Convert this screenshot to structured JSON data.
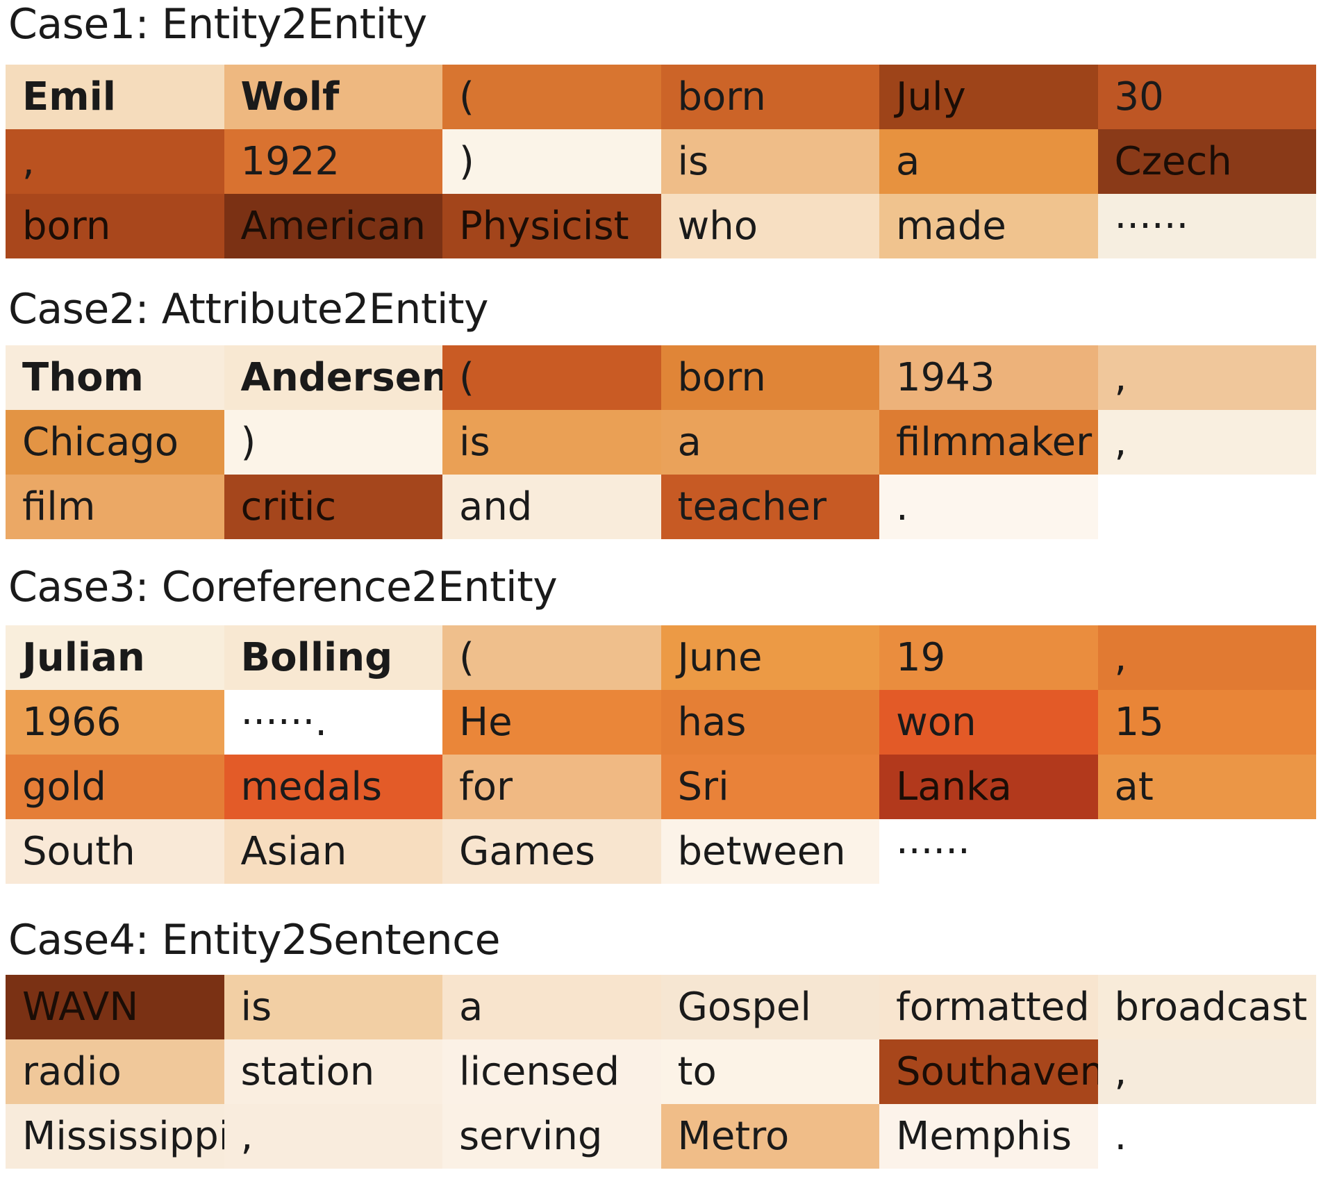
{
  "cases": [
    {
      "title": "Case1: Entity2Entity",
      "rows": [
        [
          {
            "text": "Emil",
            "color": "#f5dcbc",
            "bold": true
          },
          {
            "text": "Wolf",
            "color": "#eeb880",
            "bold": true
          },
          {
            "text": "(",
            "color": "#d87530"
          },
          {
            "text": "born",
            "color": "#cc6428"
          },
          {
            "text": "July",
            "color": "#9e4419"
          },
          {
            "text": "30",
            "color": "#be5624"
          }
        ],
        [
          {
            "text": ",",
            "color": "#ba5220"
          },
          {
            "text": "1922",
            "color": "#d97230"
          },
          {
            "text": ")",
            "color": "#fbf4e8"
          },
          {
            "text": "is",
            "color": "#efbd88"
          },
          {
            "text": "a",
            "color": "#e7923f"
          },
          {
            "text": "Czech",
            "color": "#8a3a18"
          }
        ],
        [
          {
            "text": "born",
            "color": "#a9471c"
          },
          {
            "text": "American",
            "color": "#7b3114"
          },
          {
            "text": "Physicist",
            "color": "#a3451b"
          },
          {
            "text": "who",
            "color": "#f7dfc2"
          },
          {
            "text": "made",
            "color": "#f0c38e"
          },
          {
            "text": "······",
            "color": "#f6eee0"
          }
        ]
      ]
    },
    {
      "title": "Case2: Attribute2Entity",
      "rows": [
        [
          {
            "text": "Thom",
            "color": "#f9ecdb",
            "bold": true
          },
          {
            "text": "Andersen",
            "color": "#f8e8d2",
            "bold": true
          },
          {
            "text": " (",
            "color": "#c95b24"
          },
          {
            "text": "born",
            "color": "#e08537"
          },
          {
            "text": "1943",
            "color": "#edb27a"
          },
          {
            "text": ",",
            "color": "#f0c79b"
          }
        ],
        [
          {
            "text": "Chicago",
            "color": "#e39444"
          },
          {
            "text": ")",
            "color": "#fcf4e8"
          },
          {
            "text": "is",
            "color": "#eaa055"
          },
          {
            "text": "a",
            "color": "#eaa25a"
          },
          {
            "text": "filmmaker",
            "color": "#dd7c32"
          },
          {
            "text": ",",
            "color": "#f9efe0"
          }
        ],
        [
          {
            "text": "film",
            "color": "#eba865"
          },
          {
            "text": "critic",
            "color": "#a5461c"
          },
          {
            "text": "and",
            "color": "#f9ecdb"
          },
          {
            "text": "teacher",
            "color": "#c75a24"
          },
          {
            "text": ".",
            "color": "#fdf6ee"
          }
        ]
      ]
    },
    {
      "title": "Case3: Coreference2Entity",
      "rows": [
        [
          {
            "text": "Julian",
            "color": "#f9eedc",
            "bold": true
          },
          {
            "text": "Bolling",
            "color": "#f8e8d2",
            "bold": true
          },
          {
            "text": "(",
            "color": "#efbf8c"
          },
          {
            "text": "June",
            "color": "#ec9a45"
          },
          {
            "text": "19",
            "color": "#ea8d3e"
          },
          {
            "text": ",",
            "color": "#e17a32"
          }
        ],
        [
          {
            "text": "1966",
            "color": "#eda052"
          },
          {
            "text": "······.",
            "color": "#ffffff"
          },
          {
            "text": "He",
            "color": "#ea8639"
          },
          {
            "text": "has",
            "color": "#e57f35"
          },
          {
            "text": "won",
            "color": "#e35a27"
          },
          {
            "text": "15",
            "color": "#e98537"
          }
        ],
        [
          {
            "text": "gold",
            "color": "#e57e37"
          },
          {
            "text": "medals",
            "color": "#e35b28"
          },
          {
            "text": "for",
            "color": "#f0b983"
          },
          {
            "text": "Sri",
            "color": "#e98239"
          },
          {
            "text": "Lanka",
            "color": "#b2391c"
          },
          {
            "text": "at",
            "color": "#eb9646"
          }
        ],
        [
          {
            "text": "South",
            "color": "#f9e9d7"
          },
          {
            "text": "Asian",
            "color": "#f7ddbf"
          },
          {
            "text": "Games",
            "color": "#f8e5cf"
          },
          {
            "text": "between",
            "color": "#fcf3e8"
          },
          {
            "text": "······",
            "color": "#ffffff"
          }
        ]
      ]
    },
    {
      "title": "Case4: Entity2Sentence",
      "rows": [
        [
          {
            "text": "WAVN",
            "color": "#7a3114"
          },
          {
            "text": "is",
            "color": "#f2cfa4"
          },
          {
            "text": "a",
            "color": "#f8e4cd"
          },
          {
            "text": "Gospel",
            "color": "#f6e6d2"
          },
          {
            "text": "formatted",
            "color": "#f8e5cf"
          },
          {
            "text": "broadcast",
            "color": "#f8ebd9"
          }
        ],
        [
          {
            "text": "radio",
            "color": "#f0c89a"
          },
          {
            "text": "station",
            "color": "#faeee0"
          },
          {
            "text": "licensed",
            "color": "#fbf1e6"
          },
          {
            "text": "to",
            "color": "#fcf3e7"
          },
          {
            "text": "Southaven",
            "color": "#a8461b"
          },
          {
            "text": ",",
            "color": "#f6ebdc"
          }
        ],
        [
          {
            "text": "Mississippi",
            "color": "#f8ebdb"
          },
          {
            "text": ",",
            "color": "#f9ecdd"
          },
          {
            "text": "serving",
            "color": "#fbf1e5"
          },
          {
            "text": "Metro",
            "color": "#f0bd88"
          },
          {
            "text": "Memphis",
            "color": "#fcf3ea"
          },
          {
            "text": ".",
            "color": "#ffffff"
          }
        ]
      ]
    }
  ]
}
